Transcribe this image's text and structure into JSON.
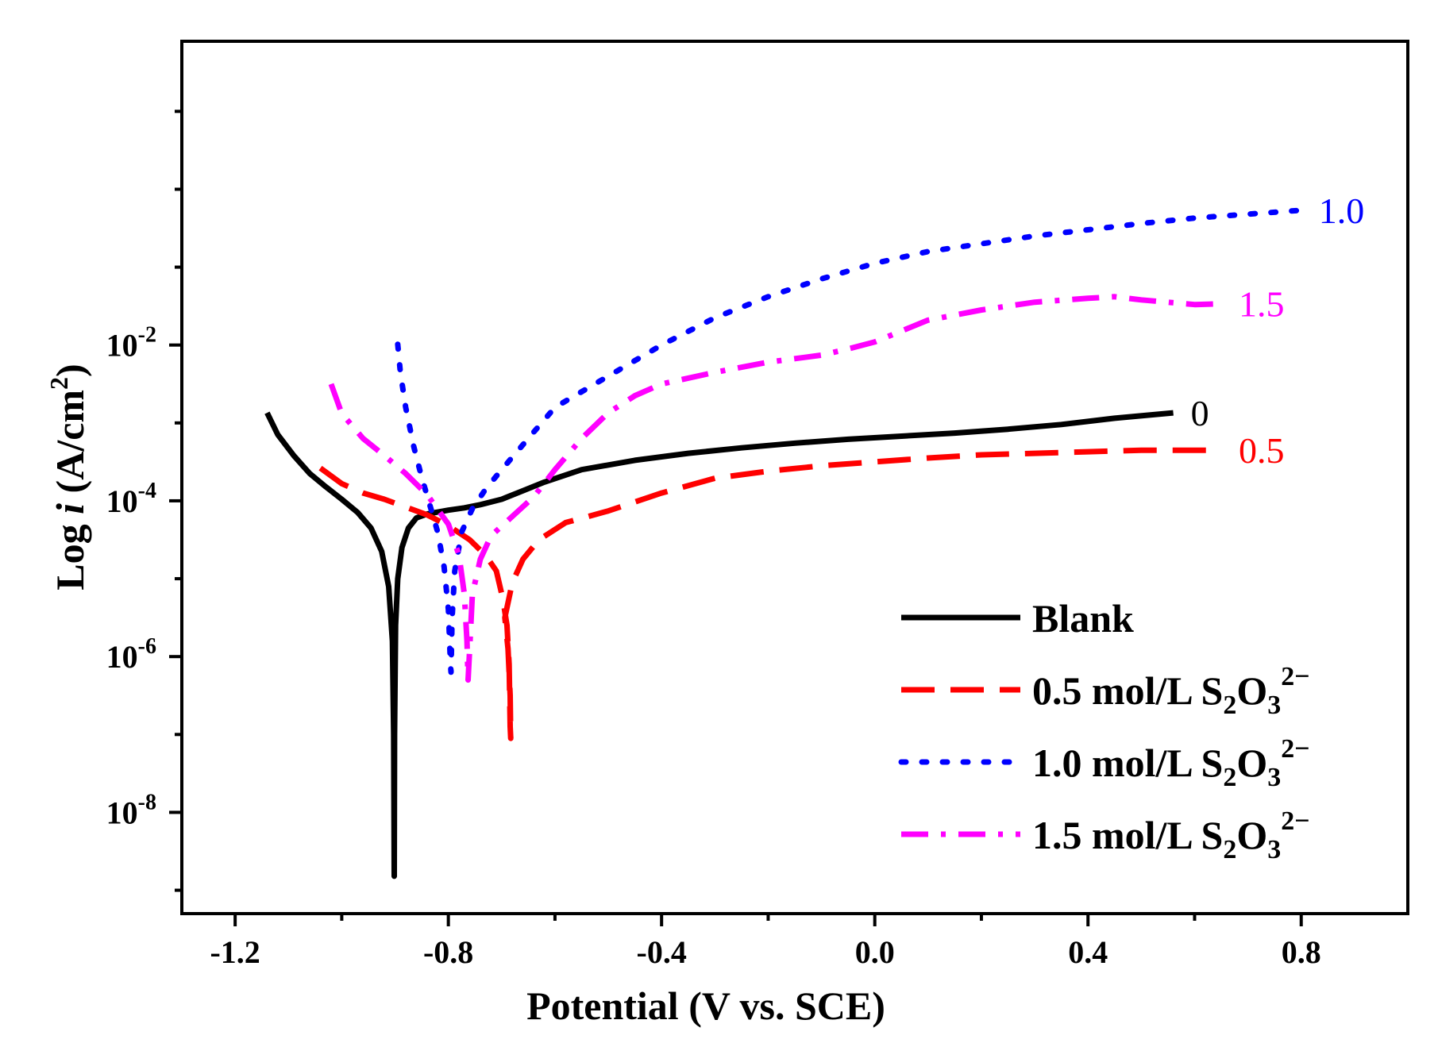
{
  "chart_data": {
    "type": "line",
    "title": "",
    "xlabel": "Potential (V vs. SCE)",
    "ylabel_prefix": "Log ",
    "ylabel_var": "i",
    "ylabel_suffix": " (A/cm",
    "ylabel_sup": "2",
    "ylabel_close": ")",
    "xlim": [
      -1.3,
      1.0
    ],
    "ylim_log10": [
      -9.3,
      1.9
    ],
    "x_ticks": [
      {
        "value": -1.2,
        "label": "-1.2"
      },
      {
        "value": -0.8,
        "label": "-0.8"
      },
      {
        "value": -0.4,
        "label": "-0.4"
      },
      {
        "value": 0.0,
        "label": "0.0"
      },
      {
        "value": 0.4,
        "label": "0.4"
      },
      {
        "value": 0.8,
        "label": "0.8"
      }
    ],
    "x_minor_ticks": [
      -1.0,
      -0.6,
      -0.2,
      0.2,
      0.6
    ],
    "y_ticks": [
      {
        "exp": -2,
        "base": "10",
        "sup": "-2"
      },
      {
        "exp": -4,
        "base": "10",
        "sup": "-4"
      },
      {
        "exp": -6,
        "base": "10",
        "sup": "-6"
      },
      {
        "exp": -8,
        "base": "10",
        "sup": "-8"
      }
    ],
    "y_minor_ticks_log10": [
      1,
      0,
      -1,
      -3,
      -5,
      -7,
      -9
    ],
    "legend_position": "bottom-right",
    "legend_ion": {
      "base": "S",
      "sub1": "2",
      "mid": "O",
      "sub2": "3",
      "sup": "2−"
    },
    "series": [
      {
        "name": "Blank",
        "legend_label": "Blank",
        "has_ion": false,
        "end_label": "0",
        "color": "#000000",
        "style": "solid",
        "points": [
          [
            -1.14,
            -2.87
          ],
          [
            -1.12,
            -3.15
          ],
          [
            -1.09,
            -3.42
          ],
          [
            -1.06,
            -3.65
          ],
          [
            -1.03,
            -3.82
          ],
          [
            -1.0,
            -3.98
          ],
          [
            -0.97,
            -4.15
          ],
          [
            -0.945,
            -4.35
          ],
          [
            -0.925,
            -4.65
          ],
          [
            -0.912,
            -5.1
          ],
          [
            -0.905,
            -5.8
          ],
          [
            -0.9025,
            -7.0
          ],
          [
            -0.9015,
            -8.82
          ],
          [
            -0.901,
            -7.0
          ],
          [
            -0.899,
            -5.6
          ],
          [
            -0.895,
            -5.0
          ],
          [
            -0.887,
            -4.6
          ],
          [
            -0.875,
            -4.35
          ],
          [
            -0.86,
            -4.22
          ],
          [
            -0.84,
            -4.17
          ],
          [
            -0.8,
            -4.12
          ],
          [
            -0.77,
            -4.09
          ],
          [
            -0.74,
            -4.05
          ],
          [
            -0.7,
            -3.98
          ],
          [
            -0.66,
            -3.87
          ],
          [
            -0.62,
            -3.76
          ],
          [
            -0.55,
            -3.6
          ],
          [
            -0.45,
            -3.48
          ],
          [
            -0.35,
            -3.39
          ],
          [
            -0.25,
            -3.32
          ],
          [
            -0.15,
            -3.26
          ],
          [
            -0.05,
            -3.21
          ],
          [
            0.05,
            -3.17
          ],
          [
            0.15,
            -3.13
          ],
          [
            0.25,
            -3.08
          ],
          [
            0.35,
            -3.02
          ],
          [
            0.45,
            -2.94
          ],
          [
            0.56,
            -2.87
          ]
        ]
      },
      {
        "name": "0.5 mol/L S2O3 2-",
        "legend_label": "0.5 mol/L ",
        "has_ion": true,
        "end_label": "0.5",
        "color": "#ff0000",
        "style": "dash",
        "points": [
          [
            -1.04,
            -3.58
          ],
          [
            -1.0,
            -3.78
          ],
          [
            -0.96,
            -3.9
          ],
          [
            -0.92,
            -3.98
          ],
          [
            -0.88,
            -4.08
          ],
          [
            -0.84,
            -4.18
          ],
          [
            -0.8,
            -4.32
          ],
          [
            -0.76,
            -4.5
          ],
          [
            -0.73,
            -4.7
          ],
          [
            -0.71,
            -4.9
          ],
          [
            -0.698,
            -5.25
          ],
          [
            -0.69,
            -5.6
          ],
          [
            -0.686,
            -6.1
          ],
          [
            -0.684,
            -6.9
          ],
          [
            -0.683,
            -7.05
          ],
          [
            -0.684,
            -6.5
          ],
          [
            -0.688,
            -5.9
          ],
          [
            -0.694,
            -5.5
          ],
          [
            -0.68,
            -5.05
          ],
          [
            -0.66,
            -4.75
          ],
          [
            -0.63,
            -4.5
          ],
          [
            -0.58,
            -4.28
          ],
          [
            -0.5,
            -4.13
          ],
          [
            -0.4,
            -3.9
          ],
          [
            -0.3,
            -3.71
          ],
          [
            -0.2,
            -3.62
          ],
          [
            -0.1,
            -3.55
          ],
          [
            0.0,
            -3.5
          ],
          [
            0.1,
            -3.45
          ],
          [
            0.2,
            -3.41
          ],
          [
            0.3,
            -3.39
          ],
          [
            0.4,
            -3.37
          ],
          [
            0.5,
            -3.35
          ],
          [
            0.65,
            -3.35
          ]
        ]
      },
      {
        "name": "1.0 mol/L S2O3 2-",
        "legend_label": "1.0 mol/L ",
        "has_ion": true,
        "end_label": "1.0",
        "color": "#0000ff",
        "style": "dot",
        "points": [
          [
            -0.895,
            -1.99
          ],
          [
            -0.89,
            -2.35
          ],
          [
            -0.88,
            -2.8
          ],
          [
            -0.865,
            -3.3
          ],
          [
            -0.85,
            -3.7
          ],
          [
            -0.835,
            -4.05
          ],
          [
            -0.82,
            -4.4
          ],
          [
            -0.808,
            -4.85
          ],
          [
            -0.8,
            -5.4
          ],
          [
            -0.796,
            -6.1
          ],
          [
            -0.795,
            -6.2
          ],
          [
            -0.793,
            -5.5
          ],
          [
            -0.788,
            -4.9
          ],
          [
            -0.775,
            -4.4
          ],
          [
            -0.755,
            -4.1
          ],
          [
            -0.73,
            -3.85
          ],
          [
            -0.7,
            -3.6
          ],
          [
            -0.65,
            -3.2
          ],
          [
            -0.6,
            -2.8
          ],
          [
            -0.5,
            -2.4
          ],
          [
            -0.4,
            -2.0
          ],
          [
            -0.3,
            -1.65
          ],
          [
            -0.2,
            -1.38
          ],
          [
            -0.1,
            -1.15
          ],
          [
            0.0,
            -0.95
          ],
          [
            0.1,
            -0.8
          ],
          [
            0.2,
            -0.7
          ],
          [
            0.3,
            -0.6
          ],
          [
            0.4,
            -0.52
          ],
          [
            0.5,
            -0.44
          ],
          [
            0.6,
            -0.37
          ],
          [
            0.8,
            -0.27
          ]
        ]
      },
      {
        "name": "1.5 mol/L S2O3 2-",
        "legend_label": "1.5 mol/L ",
        "has_ion": true,
        "end_label": "1.5",
        "color": "#ff00ff",
        "style": "dashdot",
        "points": [
          [
            -1.02,
            -2.5
          ],
          [
            -1.0,
            -2.88
          ],
          [
            -0.96,
            -3.2
          ],
          [
            -0.92,
            -3.42
          ],
          [
            -0.88,
            -3.65
          ],
          [
            -0.84,
            -3.92
          ],
          [
            -0.8,
            -4.3
          ],
          [
            -0.78,
            -4.7
          ],
          [
            -0.77,
            -5.2
          ],
          [
            -0.765,
            -5.8
          ],
          [
            -0.763,
            -6.3
          ],
          [
            -0.76,
            -5.9
          ],
          [
            -0.755,
            -5.2
          ],
          [
            -0.74,
            -4.75
          ],
          [
            -0.72,
            -4.45
          ],
          [
            -0.68,
            -4.2
          ],
          [
            -0.64,
            -3.95
          ],
          [
            -0.6,
            -3.6
          ],
          [
            -0.55,
            -3.2
          ],
          [
            -0.5,
            -2.87
          ],
          [
            -0.45,
            -2.65
          ],
          [
            -0.4,
            -2.5
          ],
          [
            -0.3,
            -2.35
          ],
          [
            -0.2,
            -2.22
          ],
          [
            -0.1,
            -2.13
          ],
          [
            -0.05,
            -2.05
          ],
          [
            0.0,
            -1.96
          ],
          [
            0.05,
            -1.82
          ],
          [
            0.1,
            -1.68
          ],
          [
            0.2,
            -1.55
          ],
          [
            0.3,
            -1.45
          ],
          [
            0.4,
            -1.4
          ],
          [
            0.45,
            -1.38
          ],
          [
            0.5,
            -1.42
          ],
          [
            0.6,
            -1.48
          ],
          [
            0.65,
            -1.47
          ]
        ]
      }
    ]
  }
}
